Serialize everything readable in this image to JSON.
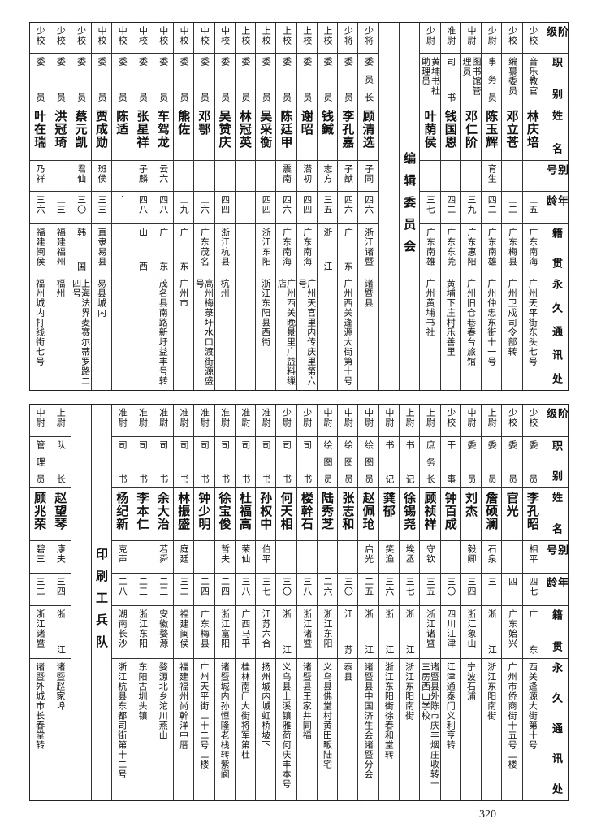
{
  "headers": [
    "阶级",
    "职别",
    "姓名",
    "别号",
    "年龄",
    "籍贯",
    "永久通讯处"
  ],
  "top_table": {
    "groups": [
      {
        "section": "",
        "rows": [
          [
            "少校",
            "音乐教官",
            "林庆培",
            "",
            "二五",
            "广东南海",
            "广州天平街东头七号"
          ],
          [
            "少校",
            "编纂委员",
            "邓立苍",
            "",
            "二二",
            "广东梅县",
            "广州卫戍司令部转"
          ],
          [
            "少尉",
            "事务员",
            "陈玉辉",
            "育生",
            "四二",
            "广东南雄",
            "广州仲忠东街十一号"
          ],
          [
            "中尉",
            "图书馆管理员",
            "邓仁阶",
            "",
            "三九",
            "广东惠阳",
            "广州旧仓巷春台旅馆"
          ],
          [
            "准尉",
            "司书",
            "钱国恩",
            "",
            "四二",
            "广东东莞",
            "黄埔下庄村乐善里"
          ],
          [
            "少尉",
            "黄埔书社助理员",
            "叶荫侯",
            "",
            "三七",
            "广东南雄",
            "广州黄埔书社"
          ]
        ]
      },
      {
        "section": "编辑委员会",
        "rows": [
          [
            "少将",
            "委员长",
            "顾清选",
            "子同",
            "四六",
            "浙江诸暨",
            "诸暨县"
          ],
          [
            "少将",
            "委员",
            "李孔嘉",
            "子猷",
            "四六",
            "广东",
            "广州西关逢源大街第十号"
          ],
          [
            "上校",
            "委员",
            "钱鍼",
            "志方",
            "三五",
            "浙江",
            ""
          ],
          [
            "上校",
            "委员",
            "谢昭",
            "潜初",
            "四四",
            "广东南海",
            "广州天官里内传庆里第六号"
          ],
          [
            "上校",
            "委员",
            "陈廷甲",
            "震南",
            "四六",
            "广东南海",
            "广州西关晚景里广益料缫店"
          ],
          [
            "上校",
            "委员",
            "吴采衡",
            "",
            "四四",
            "浙江东阳",
            "浙江东阳县西街"
          ],
          [
            "上校",
            "委员",
            "林冠英",
            "",
            "",
            "",
            ""
          ],
          [
            "中校",
            "委员",
            "吴赞庆",
            "",
            "四四",
            "浙江杭县",
            "杭州"
          ],
          [
            "中校",
            "委员",
            "邓鄂",
            "",
            "二六",
            "广东茂名",
            "高州梅菉圩水口渡街源盛号"
          ],
          [
            "中校",
            "委员",
            "熊佐",
            "",
            "二九",
            "广东",
            "广州市"
          ],
          [
            "中校",
            "委员",
            "车驾龙",
            "云六",
            "四八",
            "广东",
            "茂名县南路新圩益丰号转"
          ],
          [
            "中校",
            "委员",
            "张星祥",
            "子麟",
            "四八",
            "山西",
            ""
          ],
          [
            "中校",
            "委员",
            "陈适",
            "",
            "·",
            "",
            ""
          ],
          [
            "中校",
            "委员",
            "贾成勋",
            "斑侯",
            "三三",
            "直隶易县",
            "易县城内"
          ],
          [
            "少校",
            "委员",
            "蔡元凯",
            "君仙",
            "三〇",
            "韩国",
            "上海法界麦赛尔蒂罗路二四号"
          ],
          [
            "少校",
            "委员",
            "洪冠琦",
            "",
            "二三",
            "福建福州",
            "福州"
          ],
          [
            "少校",
            "委员",
            "叶在瑞",
            "乃祥",
            "三六",
            "福建闽侯",
            "福州城内打线街七号"
          ]
        ]
      }
    ]
  },
  "bottom_table": {
    "groups": [
      {
        "section": "",
        "rows": [
          [
            "少校",
            "委员",
            "李孔昭",
            "相平",
            "四七",
            "广东",
            "西关逢源大街第十号"
          ],
          [
            "少校",
            "委员",
            "官光",
            "",
            "四一",
            "广东始兴",
            "广州市侨商街十五号二楼"
          ],
          [
            "上尉",
            "委员",
            "詹硕澜",
            "石泉",
            "三一",
            "浙江",
            "浙江东阳南街"
          ],
          [
            "中尉",
            "委员",
            "刘杰",
            "毅卿",
            "三四",
            "浙江象山",
            "宁波石浦"
          ],
          [
            "少校",
            "干事",
            "钟百成",
            "",
            "三〇",
            "四川江津",
            "江津通泰门义利亨转"
          ],
          [
            "上尉",
            "庶务长",
            "顾祯祥",
            "守钦",
            "三五",
            "浙江诸暨",
            "诸暨县外陈市庆丰烟庄收转十三房西山学校"
          ],
          [
            "上尉",
            "书记",
            "徐锡尧",
            "埃丞",
            "三七",
            "浙江",
            "浙江东阳南街"
          ],
          [
            "中尉",
            "书记",
            "龚郁",
            "笑渔",
            "三六",
            "浙江",
            "浙江东阳街徐春和堂转"
          ],
          [
            "中尉",
            "绘图员",
            "赵佩玱",
            "启光",
            "二五",
            "浙江",
            "诸暨县中国济生会诸暨分会"
          ],
          [
            "中尉",
            "绘图员",
            "张志和",
            "",
            "三〇",
            "江苏",
            "泰县"
          ],
          [
            "中尉",
            "绘图员",
            "陆秀芝",
            "",
            "二六",
            "浙江东阳",
            "义乌县佛堂村黄田畈陆宅"
          ],
          [
            "少尉",
            "司书",
            "楼幹石",
            "",
            "三八",
            "浙江诸暨",
            "诸暨县王家井同福"
          ],
          [
            "少尉",
            "司书",
            "何天相",
            "",
            "三〇",
            "浙江",
            "义乌县上溪镇雅荷何庆丰本号"
          ],
          [
            "准尉",
            "司书",
            "孙权中",
            "伯平",
            "三七",
            "江苏六合",
            "扬州城内城虹桥坡下"
          ],
          [
            "准尉",
            "司书",
            "杜福高",
            "荣仙",
            "三八",
            "广西马平",
            "桂林南门大街将军第杜"
          ],
          [
            "准尉",
            "司书",
            "徐宝俊",
            "哲夫",
            "二四",
            "浙江富阳",
            "诸暨城内孙恒隆老栈转紫阆"
          ],
          [
            "准尉",
            "司书",
            "钟少明",
            "",
            "二四",
            "广东梅县",
            "广州天平街二十二号二楼"
          ],
          [
            "准尉",
            "司书",
            "林振盛",
            "庭廷",
            "三二",
            "福建闽侯",
            "福建福州尚幹洋中厝"
          ],
          [
            "准尉",
            "司书",
            "余大治",
            "若舜",
            "二三",
            "安徽婺源",
            "婺源北乡沱川燕山"
          ],
          [
            "准尉",
            "司书",
            "李本仁",
            "",
            "二三",
            "浙江东阳",
            "东阳古圳头镇"
          ],
          [
            "准尉",
            "司书",
            "杨纪新",
            "克声",
            "二八",
            "湖南长沙",
            "浙江杭县东都司街第十二号"
          ]
        ]
      },
      {
        "section": "印刷工兵队",
        "rows": [
          [
            "上尉",
            "队长",
            "赵望琴",
            "康夫",
            "三四",
            "浙江",
            "诸暨赵家埠"
          ],
          [
            "中尉",
            "管理员",
            "顾兆荣",
            "碧三",
            "三二",
            "浙江诸暨",
            "诸暨外城市长春堂转"
          ]
        ]
      }
    ]
  },
  "page_number": "320"
}
